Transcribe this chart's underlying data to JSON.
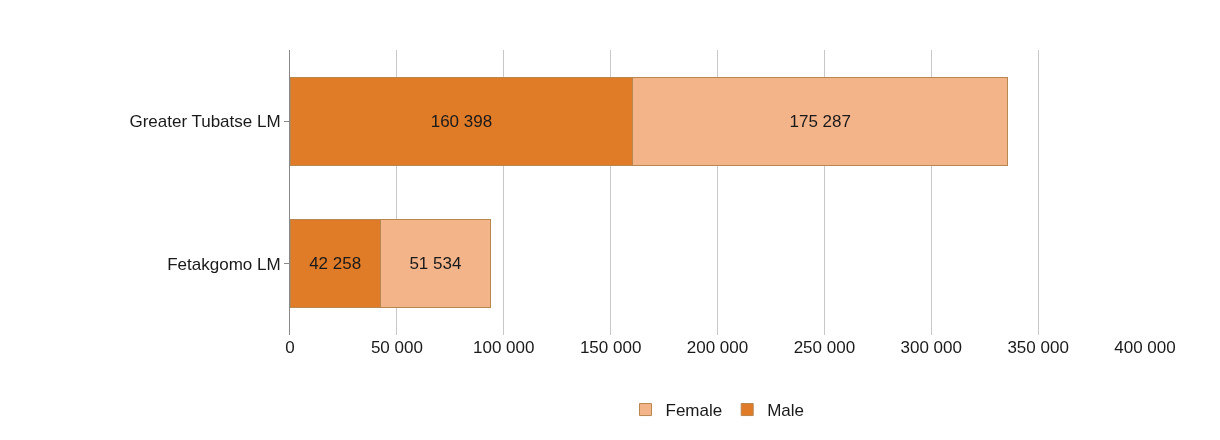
{
  "chart_data": {
    "type": "bar",
    "orientation": "horizontal",
    "stacked": true,
    "categories": [
      "Greater Tubatse LM",
      "Fetakgomo LM"
    ],
    "series": [
      {
        "name": "Male",
        "color": "#e07b28",
        "values": [
          160398,
          42258
        ],
        "value_labels": [
          "160 398",
          "42 258"
        ]
      },
      {
        "name": "Female",
        "color": "#f4b48a",
        "values": [
          175287,
          51534
        ],
        "value_labels": [
          "175 287",
          "51 534"
        ]
      }
    ],
    "xlim": [
      0,
      400000
    ],
    "xticks": [
      0,
      {
        "value": 50000,
        "label": "50 000"
      },
      {
        "value": 100000,
        "label": "100 000"
      },
      {
        "value": 150000,
        "label": "150 000"
      },
      {
        "value": 200000,
        "label": "200 000"
      },
      {
        "value": 250000,
        "label": "250 000"
      },
      {
        "value": 300000,
        "label": "300 000"
      },
      {
        "value": 350000,
        "label": "350 000"
      },
      {
        "value": 400000,
        "label": "400 000"
      }
    ],
    "grid": "x",
    "legend": "bottom"
  }
}
